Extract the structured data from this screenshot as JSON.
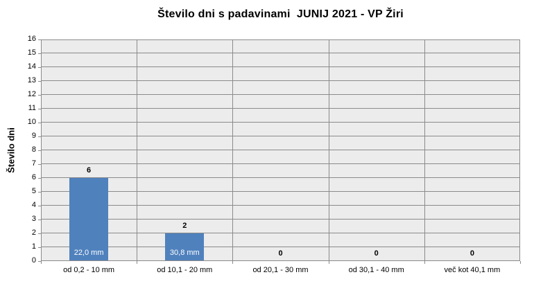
{
  "chart_data": {
    "type": "bar",
    "title": "Število dni s padavinami  JUNIJ 2021 - VP Žiri",
    "xlabel": "",
    "ylabel": "Število dni",
    "categories": [
      "od 0,2 - 10 mm",
      "od 10,1 - 20 mm",
      "od 20,1 - 30 mm",
      "od 30,1 - 40 mm",
      "več kot 40,1 mm"
    ],
    "values": [
      6,
      2,
      0,
      0,
      0
    ],
    "value_labels": [
      "6",
      "2",
      "0",
      "0",
      "0"
    ],
    "bar_inner_labels": [
      "22,0 mm",
      "30,8 mm",
      "",
      "",
      ""
    ],
    "ylim": [
      0,
      16
    ],
    "ytick_step": 1,
    "legend": "none",
    "grid": "horizontal and vertical category separators",
    "colors": {
      "bar_fill": "#4F81BD",
      "plot_background": "#ECECEC",
      "gridline": "#8A8A8A",
      "text": "#000000",
      "inner_label_text": "#FFFFFF",
      "page_background": "#FFFFFF"
    }
  }
}
